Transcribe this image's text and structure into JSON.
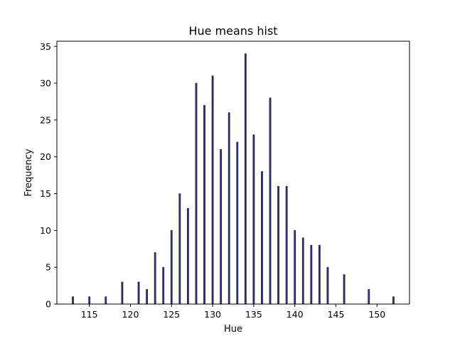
{
  "chart_data": {
    "type": "bar",
    "title": "Hue means hist",
    "xlabel": "Hue",
    "ylabel": "Frequency",
    "xlim": [
      111.05,
      153.95
    ],
    "ylim": [
      0,
      35.7
    ],
    "xticks": [
      115,
      120,
      125,
      130,
      135,
      140,
      145,
      150
    ],
    "yticks": [
      0,
      5,
      10,
      15,
      20,
      25,
      30,
      35
    ],
    "grid": false,
    "bar_color": "#2e2e8a",
    "bar_edge_color": "#222222",
    "x": [
      113,
      115,
      117,
      119,
      121,
      122,
      123,
      124,
      125,
      126,
      127,
      128,
      129,
      130,
      131,
      132,
      133,
      134,
      135,
      136,
      137,
      138,
      139,
      140,
      141,
      142,
      143,
      144,
      146,
      149,
      152
    ],
    "values": [
      1,
      1,
      1,
      3,
      3,
      2,
      7,
      5,
      10,
      15,
      13,
      30,
      27,
      31,
      21,
      26,
      22,
      34,
      23,
      18,
      28,
      16,
      16,
      10,
      9,
      8,
      8,
      5,
      4,
      2,
      1
    ]
  }
}
